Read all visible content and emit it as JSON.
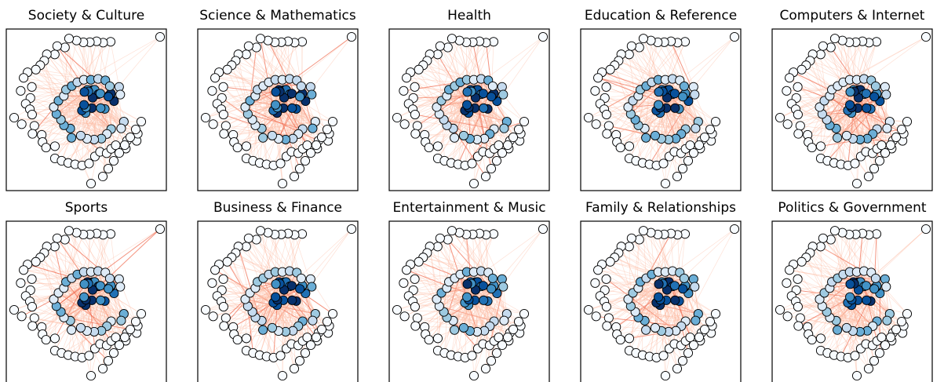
{
  "panels": [
    {
      "title": "Society & Culture"
    },
    {
      "title": "Science & Mathematics"
    },
    {
      "title": "Health"
    },
    {
      "title": "Education & Reference"
    },
    {
      "title": "Computers & Internet"
    },
    {
      "title": "Sports"
    },
    {
      "title": "Business & Finance"
    },
    {
      "title": "Entertainment & Music"
    },
    {
      "title": "Family & Relationships"
    },
    {
      "title": "Politics & Government"
    }
  ]
}
